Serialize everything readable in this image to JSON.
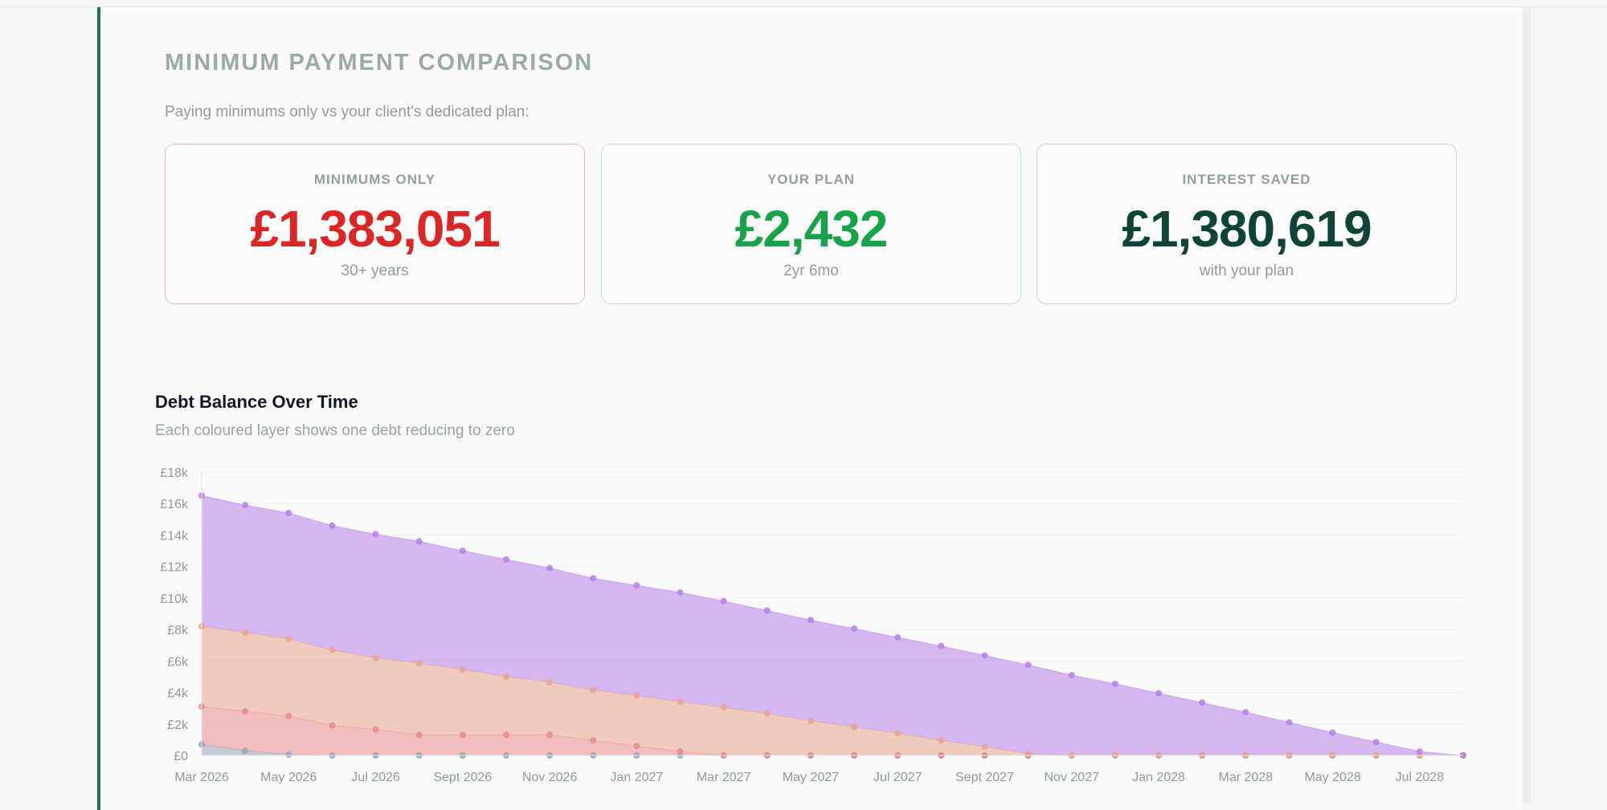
{
  "section": {
    "title": "MINIMUM PAYMENT COMPARISON",
    "subtitle": "Paying minimums only vs your client's dedicated plan:"
  },
  "cards": {
    "minimums": {
      "label": "MINIMUMS ONLY",
      "value": "£1,383,051",
      "note": "30+ years",
      "color": "#dc2626"
    },
    "plan": {
      "label": "YOUR PLAN",
      "value": "£2,432",
      "note": "2yr 6mo",
      "color": "#16a34a"
    },
    "saved": {
      "label": "INTEREST SAVED",
      "value": "£1,380,619",
      "note": "with your plan",
      "color": "#0e4438"
    }
  },
  "chart": {
    "title": "Debt Balance Over Time",
    "subtitle": "Each coloured layer shows one debt reducing to zero"
  },
  "chart_data": {
    "type": "area",
    "stacked": true,
    "ylim": [
      0,
      18000
    ],
    "yticks": [
      "£0",
      "£2k",
      "£4k",
      "£6k",
      "£8k",
      "£10k",
      "£12k",
      "£14k",
      "£16k",
      "£18k"
    ],
    "xtick_labels": [
      "Mar 2026",
      "May 2026",
      "Jul 2026",
      "Sept 2026",
      "Nov 2026",
      "Jan 2027",
      "Mar 2027",
      "May 2027",
      "Jul 2027",
      "Sept 2027",
      "Nov 2027",
      "Jan 2028",
      "Mar 2028",
      "May 2028",
      "Jul 2028"
    ],
    "x": [
      "Mar 2026",
      "Apr 2026",
      "May 2026",
      "Jun 2026",
      "Jul 2026",
      "Aug 2026",
      "Sept 2026",
      "Oct 2026",
      "Nov 2026",
      "Dec 2026",
      "Jan 2027",
      "Feb 2027",
      "Mar 2027",
      "Apr 2027",
      "May 2027",
      "Jun 2027",
      "Jul 2027",
      "Aug 2027",
      "Sept 2027",
      "Oct 2027",
      "Nov 2027",
      "Dec 2027",
      "Jan 2028",
      "Feb 2028",
      "Mar 2028",
      "Apr 2028",
      "May 2028",
      "Jun 2028",
      "Jul 2028",
      "Aug 2028"
    ],
    "series": [
      {
        "color": "#94a3b8",
        "values": [
          700,
          300,
          50,
          0,
          0,
          0,
          0,
          0,
          0,
          0,
          0,
          0,
          0,
          0,
          0,
          0,
          0,
          0,
          0,
          0,
          0,
          0,
          0,
          0,
          0,
          0,
          0,
          0,
          0,
          0
        ]
      },
      {
        "color": "#e98b8b",
        "values": [
          2400,
          2500,
          2450,
          1900,
          1650,
          1300,
          1300,
          1300,
          1300,
          950,
          600,
          250,
          0,
          0,
          0,
          0,
          0,
          0,
          0,
          0,
          0,
          0,
          0,
          0,
          0,
          0,
          0,
          0,
          0,
          0
        ]
      },
      {
        "color": "#eaa38d",
        "values": [
          5100,
          5000,
          4900,
          4800,
          4550,
          4550,
          4150,
          3700,
          3350,
          3200,
          3200,
          3150,
          3050,
          2650,
          2200,
          1800,
          1400,
          950,
          550,
          100,
          0,
          0,
          0,
          0,
          0,
          0,
          0,
          0,
          0,
          0
        ]
      },
      {
        "color": "#b57fe8",
        "values": [
          8300,
          8100,
          8000,
          7900,
          7850,
          7750,
          7550,
          7450,
          7250,
          7100,
          7000,
          6950,
          6750,
          6550,
          6400,
          6250,
          6100,
          6000,
          5800,
          5650,
          5100,
          4550,
          3950,
          3350,
          2750,
          2100,
          1450,
          850,
          250,
          0
        ]
      }
    ]
  }
}
